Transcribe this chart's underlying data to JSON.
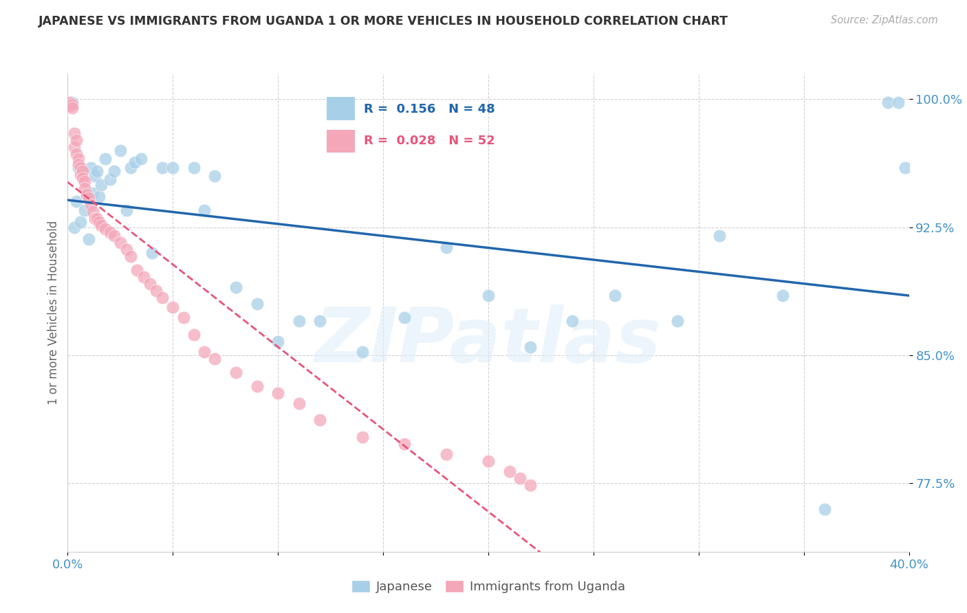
{
  "title": "JAPANESE VS IMMIGRANTS FROM UGANDA 1 OR MORE VEHICLES IN HOUSEHOLD CORRELATION CHART",
  "source": "Source: ZipAtlas.com",
  "ylabel": "1 or more Vehicles in Household",
  "watermark": "ZIPatlas",
  "blue_R": 0.156,
  "blue_N": 48,
  "pink_R": 0.028,
  "pink_N": 52,
  "xlim": [
    0.0,
    0.4
  ],
  "ylim": [
    0.735,
    1.015
  ],
  "yticks": [
    0.775,
    0.85,
    0.925,
    1.0
  ],
  "ytick_labels": [
    "77.5%",
    "85.0%",
    "92.5%",
    "100.0%"
  ],
  "xticks": [
    0.0,
    0.05,
    0.1,
    0.15,
    0.2,
    0.25,
    0.3,
    0.35,
    0.4
  ],
  "xtick_labels": [
    "0.0%",
    "",
    "",
    "",
    "",
    "",
    "",
    "",
    "40.0%"
  ],
  "blue_color": "#a8cfe8",
  "pink_color": "#f4a7b9",
  "blue_line_color": "#2166ac",
  "pink_line_color": "#e8547a",
  "axis_color": "#4292c6",
  "blue_x": [
    0.002,
    0.003,
    0.004,
    0.005,
    0.006,
    0.007,
    0.008,
    0.009,
    0.01,
    0.011,
    0.012,
    0.013,
    0.014,
    0.015,
    0.016,
    0.018,
    0.02,
    0.022,
    0.025,
    0.028,
    0.03,
    0.032,
    0.035,
    0.04,
    0.045,
    0.05,
    0.06,
    0.065,
    0.07,
    0.08,
    0.09,
    0.1,
    0.11,
    0.12,
    0.14,
    0.16,
    0.18,
    0.2,
    0.22,
    0.24,
    0.26,
    0.29,
    0.31,
    0.34,
    0.36,
    0.39,
    0.395,
    0.398
  ],
  "blue_y": [
    0.998,
    0.925,
    0.94,
    0.96,
    0.928,
    0.958,
    0.935,
    0.944,
    0.918,
    0.96,
    0.945,
    0.955,
    0.958,
    0.943,
    0.95,
    0.965,
    0.953,
    0.958,
    0.97,
    0.935,
    0.96,
    0.963,
    0.965,
    0.91,
    0.96,
    0.96,
    0.96,
    0.935,
    0.955,
    0.89,
    0.88,
    0.858,
    0.87,
    0.87,
    0.852,
    0.872,
    0.913,
    0.885,
    0.855,
    0.87,
    0.885,
    0.87,
    0.92,
    0.885,
    0.76,
    0.998,
    0.998,
    0.96
  ],
  "pink_x": [
    0.001,
    0.001,
    0.002,
    0.002,
    0.003,
    0.003,
    0.004,
    0.004,
    0.005,
    0.005,
    0.006,
    0.006,
    0.007,
    0.007,
    0.008,
    0.008,
    0.009,
    0.01,
    0.011,
    0.012,
    0.013,
    0.014,
    0.015,
    0.016,
    0.018,
    0.02,
    0.022,
    0.025,
    0.028,
    0.03,
    0.033,
    0.036,
    0.039,
    0.042,
    0.045,
    0.05,
    0.055,
    0.06,
    0.065,
    0.07,
    0.08,
    0.09,
    0.1,
    0.11,
    0.12,
    0.14,
    0.16,
    0.18,
    0.2,
    0.21,
    0.215,
    0.22
  ],
  "pink_y": [
    0.998,
    0.996,
    0.997,
    0.995,
    0.98,
    0.972,
    0.976,
    0.968,
    0.965,
    0.962,
    0.96,
    0.956,
    0.958,
    0.954,
    0.952,
    0.948,
    0.944,
    0.942,
    0.938,
    0.934,
    0.93,
    0.93,
    0.928,
    0.926,
    0.924,
    0.922,
    0.92,
    0.916,
    0.912,
    0.908,
    0.9,
    0.896,
    0.892,
    0.888,
    0.884,
    0.878,
    0.872,
    0.862,
    0.852,
    0.848,
    0.84,
    0.832,
    0.828,
    0.822,
    0.812,
    0.802,
    0.798,
    0.792,
    0.788,
    0.782,
    0.778,
    0.774
  ]
}
